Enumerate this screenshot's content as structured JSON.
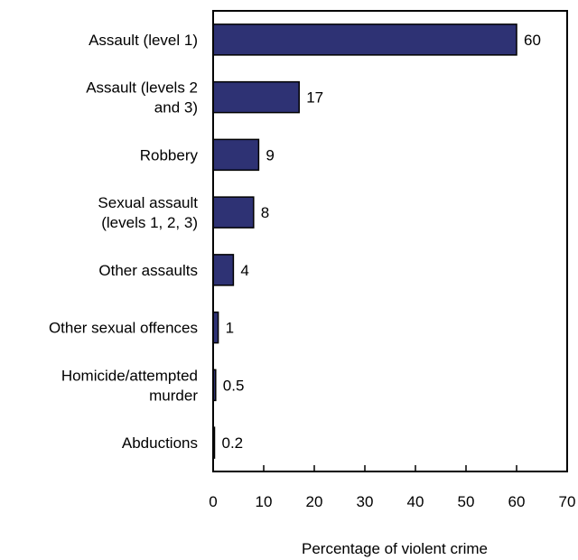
{
  "chart_data": {
    "type": "bar",
    "orientation": "horizontal",
    "categories": [
      [
        "Assault (level 1)"
      ],
      [
        "Assault (levels 2",
        "and 3)"
      ],
      [
        "Robbery"
      ],
      [
        "Sexual assault",
        "(levels 1, 2, 3)"
      ],
      [
        "Other assaults"
      ],
      [
        "Other sexual offences"
      ],
      [
        "Homicide/attempted",
        "murder"
      ],
      [
        "Abductions"
      ]
    ],
    "values": [
      60,
      17,
      9,
      8,
      4,
      1,
      0.5,
      0.2
    ],
    "value_labels": [
      "60",
      "17",
      "9",
      "8",
      "4",
      "1",
      "0.5",
      "0.2"
    ],
    "xlabel": "Percentage of violent crime",
    "xlim": [
      0,
      70
    ],
    "xticks": [
      0,
      10,
      20,
      30,
      40,
      50,
      60,
      70
    ],
    "grid": false,
    "bar_color": "#2e3274",
    "bar_edge_color": "#000000"
  }
}
